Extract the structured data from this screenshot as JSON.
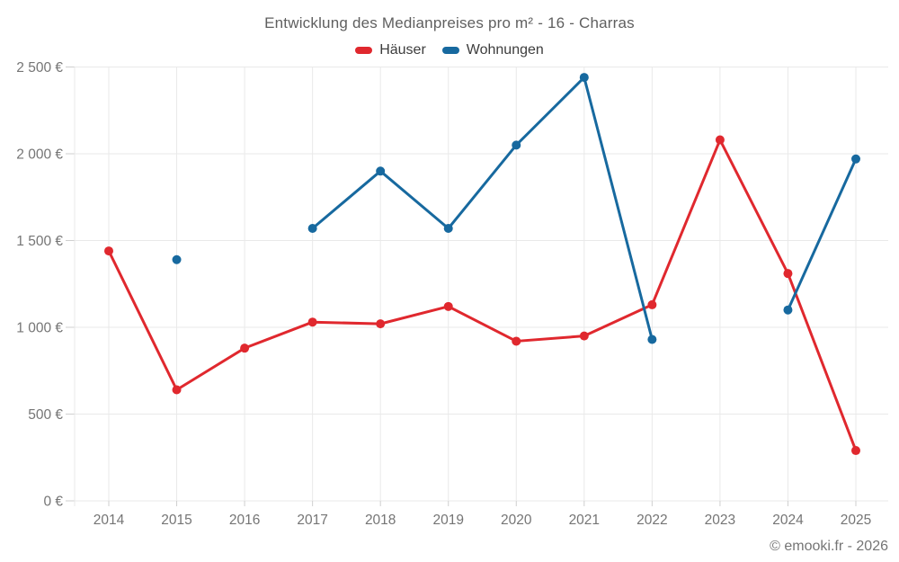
{
  "page": {
    "title": "Entwicklung des Medianpreises pro m² - 16 - Charras",
    "watermark": "© emooki.fr - 2026"
  },
  "colors": {
    "haeuser": "#e0282e",
    "wohnungen": "#17699f",
    "grid": "#e9e9e9",
    "tick": "#cfcfcf",
    "axis_text": "#757575",
    "title_text": "#5f5f5f",
    "legend_text": "#3d3d3d",
    "background": "#ffffff"
  },
  "chart_data": {
    "type": "line",
    "title": "Entwicklung des Medianpreises pro m² - 16 - Charras",
    "categories": [
      "2014",
      "2015",
      "2016",
      "2017",
      "2018",
      "2019",
      "2020",
      "2021",
      "2022",
      "2023",
      "2024",
      "2025"
    ],
    "series": [
      {
        "name": "Häuser",
        "color": "#e0282e",
        "values": [
          1440,
          640,
          880,
          1030,
          1020,
          1120,
          920,
          950,
          1130,
          2080,
          1310,
          290
        ]
      },
      {
        "name": "Wohnungen",
        "color": "#17699f",
        "values": [
          null,
          1390,
          null,
          1570,
          1900,
          1570,
          2050,
          2440,
          930,
          null,
          1100,
          1970
        ]
      }
    ],
    "xlabel": "",
    "ylabel": "",
    "ylim": [
      0,
      2500
    ],
    "yticks": [
      {
        "value": 0,
        "label": "0 €"
      },
      {
        "value": 500,
        "label": "500 €"
      },
      {
        "value": 1000,
        "label": "1 000 €"
      },
      {
        "value": 1500,
        "label": "1 500 €"
      },
      {
        "value": 2000,
        "label": "2 000 €"
      },
      {
        "value": 2500,
        "label": "2 500 €"
      }
    ],
    "grid": true,
    "legend_position": "top",
    "marker": "circle"
  }
}
